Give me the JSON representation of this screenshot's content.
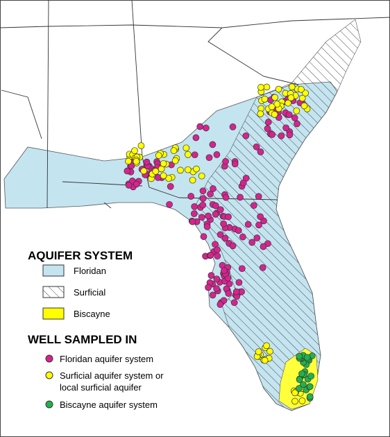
{
  "legend": {
    "aquifer_title": "AQUIFER SYSTEM",
    "aquifer_items": [
      "Floridan",
      "Surficial",
      "Biscayne"
    ],
    "well_title": "WELL SAMPLED IN",
    "well_items": [
      [
        "Floridan aquifer system"
      ],
      [
        "Surficial aquifer system or",
        "local surficial aquifer"
      ],
      [
        "Biscayne aquifer system"
      ]
    ]
  }
}
